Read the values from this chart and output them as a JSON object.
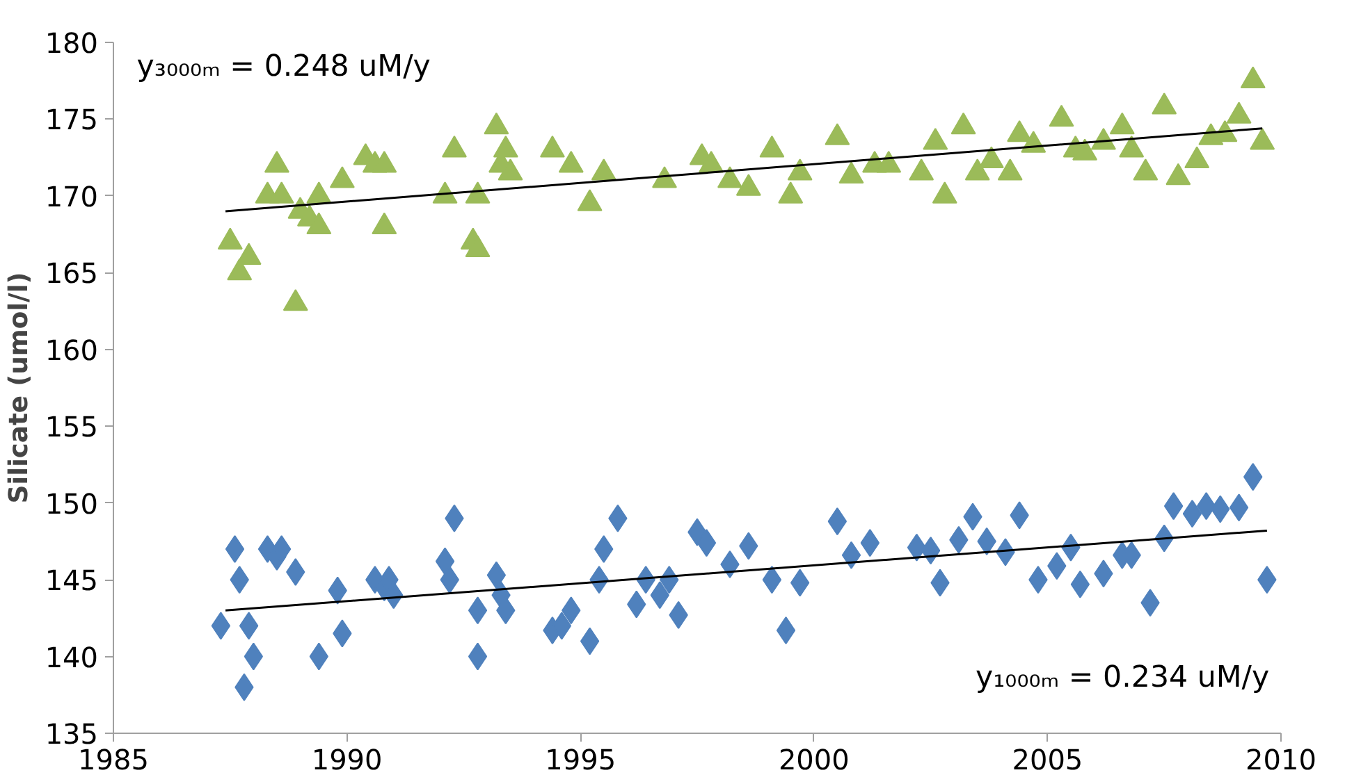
{
  "chart_data": {
    "type": "scatter",
    "ylabel": "Silicate (umol/l)",
    "xlim": [
      1985,
      2010
    ],
    "xticks": [
      1985,
      1990,
      1995,
      2000,
      2005,
      2010
    ],
    "ylim": [
      135,
      180
    ],
    "yticks": [
      135,
      140,
      145,
      150,
      155,
      160,
      165,
      170,
      175,
      180
    ],
    "grid": false,
    "series": [
      {
        "marker": "triangle",
        "color": "#9bbb59",
        "x": [
          1987.5,
          1987.7,
          1987.9,
          1988.3,
          1988.5,
          1988.6,
          1988.9,
          1989.0,
          1989.2,
          1989.4,
          1989.4,
          1989.9,
          1990.4,
          1990.6,
          1990.8,
          1990.8,
          1992.1,
          1992.3,
          1992.7,
          1992.8,
          1992.8,
          1993.2,
          1993.3,
          1993.4,
          1993.5,
          1994.4,
          1994.8,
          1995.2,
          1995.5,
          1996.8,
          1997.6,
          1997.8,
          1998.2,
          1998.6,
          1999.1,
          1999.5,
          1999.7,
          2000.5,
          2000.8,
          2001.3,
          2001.6,
          2002.3,
          2002.6,
          2002.8,
          2003.2,
          2003.5,
          2003.8,
          2004.2,
          2004.4,
          2004.7,
          2005.3,
          2005.6,
          2005.8,
          2006.2,
          2006.6,
          2006.8,
          2007.1,
          2007.5,
          2007.8,
          2008.2,
          2008.5,
          2008.8,
          2009.1,
          2009.4,
          2009.6
        ],
        "values": [
          167,
          165,
          166,
          170,
          172,
          170,
          163,
          169,
          168.5,
          168,
          170,
          171,
          172.5,
          172,
          168,
          172,
          170,
          173,
          167,
          166.5,
          170,
          174.5,
          172,
          173,
          171.5,
          173,
          172,
          169.5,
          171.5,
          171,
          172.5,
          172,
          171,
          170.5,
          173,
          170,
          171.5,
          173.8,
          171.3,
          172,
          172,
          171.5,
          173.5,
          170,
          174.5,
          171.5,
          172.3,
          171.5,
          174,
          173.3,
          175,
          173,
          172.8,
          173.5,
          174.5,
          173,
          171.5,
          175.8,
          171.2,
          172.3,
          173.8,
          174,
          175.2,
          177.5,
          173.5
        ]
      },
      {
        "marker": "diamond",
        "color": "#4f81bd",
        "x": [
          1987.3,
          1987.6,
          1987.7,
          1987.8,
          1987.9,
          1988.0,
          1988.3,
          1988.5,
          1988.6,
          1988.9,
          1989.4,
          1989.8,
          1989.9,
          1990.6,
          1990.8,
          1990.9,
          1991.0,
          1992.1,
          1992.2,
          1992.3,
          1992.8,
          1992.8,
          1993.2,
          1993.3,
          1993.4,
          1994.4,
          1994.6,
          1994.8,
          1995.2,
          1995.4,
          1995.5,
          1995.8,
          1996.2,
          1996.4,
          1996.7,
          1996.9,
          1997.1,
          1997.5,
          1997.7,
          1998.2,
          1998.6,
          1999.1,
          1999.4,
          1999.7,
          2000.5,
          2000.8,
          2001.2,
          2002.2,
          2002.5,
          2002.7,
          2003.1,
          2003.4,
          2003.7,
          2004.1,
          2004.4,
          2004.8,
          2005.2,
          2005.5,
          2005.7,
          2006.2,
          2006.6,
          2006.8,
          2007.2,
          2007.5,
          2007.7,
          2008.1,
          2008.4,
          2008.7,
          2009.1,
          2009.4,
          2009.7
        ],
        "values": [
          142,
          147,
          145,
          138,
          142,
          140,
          147,
          146.5,
          147,
          145.5,
          140,
          144.3,
          141.5,
          145,
          144.5,
          145,
          144,
          146.2,
          145,
          149,
          143,
          140,
          145.3,
          144,
          143,
          141.7,
          142,
          143,
          141,
          145,
          147,
          149,
          143.4,
          145,
          144,
          145,
          142.7,
          148.1,
          147.4,
          146,
          147.2,
          145,
          141.7,
          144.8,
          148.8,
          146.6,
          147.4,
          147.1,
          146.9,
          144.8,
          147.6,
          149.1,
          147.5,
          146.8,
          149.2,
          145,
          145.9,
          147.1,
          144.7,
          145.4,
          146.6,
          146.6,
          143.5,
          147.7,
          149.8,
          149.3,
          149.8,
          149.6,
          149.7,
          151.7,
          145
        ]
      },
      {
        "type": "line",
        "color": "#000000",
        "x": [
          1987.4,
          2009.6
        ],
        "values": [
          169,
          174.4
        ]
      },
      {
        "type": "line",
        "color": "#000000",
        "x": [
          1987.4,
          2009.7
        ],
        "values": [
          143,
          148.2
        ]
      }
    ],
    "annotations": [
      "y₃₀₀₀ₘ = 0.248 uM/y",
      "y₁₀₀₀ₘ = 0.234 uM/y"
    ]
  }
}
